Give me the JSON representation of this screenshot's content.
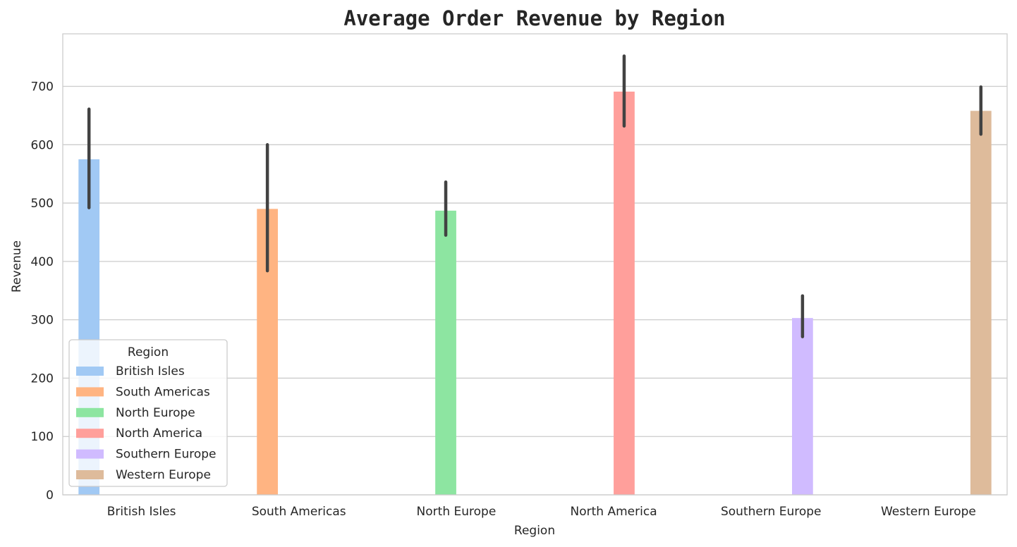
{
  "chart_data": {
    "type": "bar",
    "title": "Average Order Revenue by Region",
    "xlabel": "Region",
    "ylabel": "Revenue",
    "categories": [
      "British Isles",
      "South Americas",
      "North Europe",
      "North America",
      "Southern Europe",
      "Western Europe"
    ],
    "series": [
      {
        "name": "British Isles",
        "color": "#a1c9f4",
        "values": [
          575,
          null,
          null,
          null,
          null,
          null
        ],
        "error_low": [
          492,
          null,
          null,
          null,
          null,
          null
        ],
        "error_high": [
          661,
          null,
          null,
          null,
          null,
          null
        ]
      },
      {
        "name": "South Americas",
        "color": "#ffb482",
        "values": [
          null,
          490,
          null,
          null,
          null,
          null
        ],
        "error_low": [
          null,
          384,
          null,
          null,
          null,
          null
        ],
        "error_high": [
          null,
          600,
          null,
          null,
          null,
          null
        ]
      },
      {
        "name": "North Europe",
        "color": "#8de5a1",
        "values": [
          null,
          null,
          487,
          null,
          null,
          null
        ],
        "error_low": [
          null,
          null,
          445,
          null,
          null,
          null
        ],
        "error_high": [
          null,
          null,
          536,
          null,
          null,
          null
        ]
      },
      {
        "name": "North America",
        "color": "#ff9f9b",
        "values": [
          null,
          null,
          null,
          691,
          null,
          null
        ],
        "error_low": [
          null,
          null,
          null,
          632,
          null,
          null
        ],
        "error_high": [
          null,
          null,
          null,
          752,
          null,
          null
        ]
      },
      {
        "name": "Southern Europe",
        "color": "#d0bbff",
        "values": [
          null,
          null,
          null,
          null,
          303,
          null
        ],
        "error_low": [
          null,
          null,
          null,
          null,
          271,
          null
        ],
        "error_high": [
          null,
          null,
          null,
          null,
          341,
          null
        ]
      },
      {
        "name": "Western Europe",
        "color": "#debb9b",
        "values": [
          null,
          null,
          null,
          null,
          null,
          658
        ],
        "error_low": [
          null,
          null,
          null,
          null,
          null,
          618
        ],
        "error_high": [
          null,
          null,
          null,
          null,
          null,
          699
        ]
      }
    ],
    "ylim": [
      0,
      790
    ],
    "yticks": [
      0,
      100,
      200,
      300,
      400,
      500,
      600,
      700
    ],
    "grid": true,
    "legend": {
      "title": "Region",
      "placement": "lower-left"
    }
  }
}
